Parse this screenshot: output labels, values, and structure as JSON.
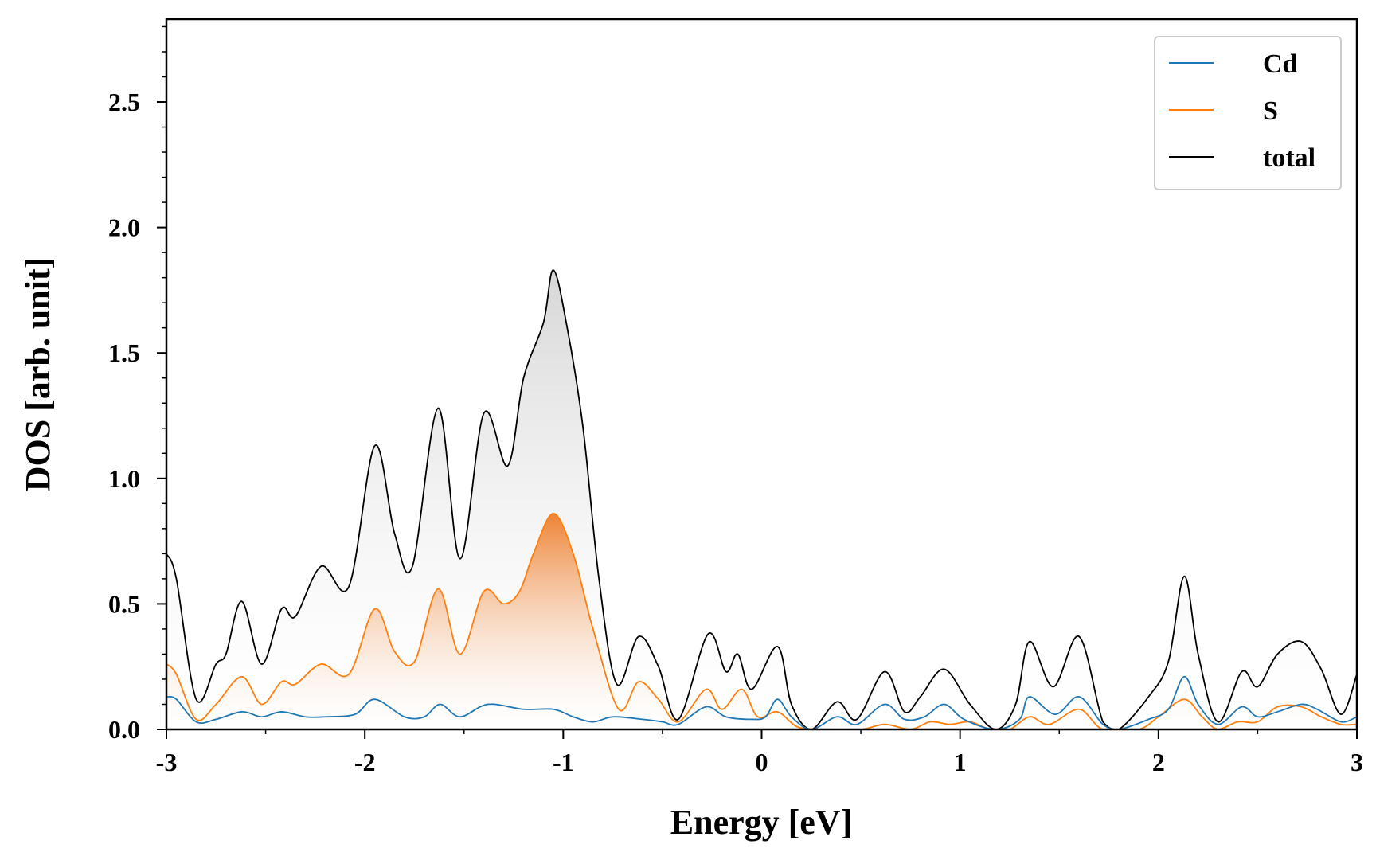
{
  "chart_data": {
    "type": "area",
    "title": "",
    "xlabel": "Energy [eV]",
    "ylabel": "DOS [arb. unit]",
    "xlim": [
      -3,
      3
    ],
    "ylim": [
      0,
      2.83
    ],
    "xticks": [
      -3,
      -2,
      -1,
      0,
      1,
      2,
      3
    ],
    "xtick_labels": [
      "-3",
      "-2",
      "-1",
      "0",
      "1",
      "2",
      "3"
    ],
    "yticks": [
      0,
      0.5,
      1,
      1.5,
      2,
      2.5
    ],
    "ytick_labels": [
      "0.0",
      "0.5",
      "1.0",
      "1.5",
      "2.0",
      "2.5"
    ],
    "legend_position": "top-right",
    "grid": false,
    "series": [
      {
        "name": "Cd",
        "color": "#1f77b4",
        "fill": false,
        "points": [
          [
            -3.0,
            0.13
          ],
          [
            -2.95,
            0.12
          ],
          [
            -2.85,
            0.03
          ],
          [
            -2.75,
            0.04
          ],
          [
            -2.62,
            0.07
          ],
          [
            -2.52,
            0.05
          ],
          [
            -2.42,
            0.07
          ],
          [
            -2.3,
            0.05
          ],
          [
            -2.2,
            0.05
          ],
          [
            -2.05,
            0.06
          ],
          [
            -1.95,
            0.12
          ],
          [
            -1.8,
            0.05
          ],
          [
            -1.7,
            0.05
          ],
          [
            -1.62,
            0.1
          ],
          [
            -1.52,
            0.05
          ],
          [
            -1.38,
            0.1
          ],
          [
            -1.2,
            0.08
          ],
          [
            -1.05,
            0.08
          ],
          [
            -0.95,
            0.05
          ],
          [
            -0.85,
            0.03
          ],
          [
            -0.75,
            0.05
          ],
          [
            -0.6,
            0.04
          ],
          [
            -0.5,
            0.03
          ],
          [
            -0.42,
            0.02
          ],
          [
            -0.28,
            0.09
          ],
          [
            -0.18,
            0.05
          ],
          [
            -0.05,
            0.04
          ],
          [
            0.02,
            0.05
          ],
          [
            0.08,
            0.12
          ],
          [
            0.15,
            0.05
          ],
          [
            0.25,
            0.0
          ],
          [
            0.38,
            0.05
          ],
          [
            0.48,
            0.02
          ],
          [
            0.62,
            0.1
          ],
          [
            0.72,
            0.04
          ],
          [
            0.82,
            0.05
          ],
          [
            0.92,
            0.1
          ],
          [
            1.02,
            0.04
          ],
          [
            1.18,
            0.0
          ],
          [
            1.3,
            0.04
          ],
          [
            1.35,
            0.13
          ],
          [
            1.48,
            0.06
          ],
          [
            1.6,
            0.13
          ],
          [
            1.72,
            0.02
          ],
          [
            1.8,
            0.0
          ],
          [
            1.95,
            0.04
          ],
          [
            2.05,
            0.08
          ],
          [
            2.13,
            0.21
          ],
          [
            2.2,
            0.1
          ],
          [
            2.3,
            0.02
          ],
          [
            2.42,
            0.09
          ],
          [
            2.5,
            0.05
          ],
          [
            2.6,
            0.07
          ],
          [
            2.72,
            0.1
          ],
          [
            2.8,
            0.08
          ],
          [
            2.92,
            0.03
          ],
          [
            3.0,
            0.05
          ]
        ]
      },
      {
        "name": "S",
        "color": "#ff7f0e",
        "fill": true,
        "points": [
          [
            -3.0,
            0.26
          ],
          [
            -2.95,
            0.22
          ],
          [
            -2.85,
            0.04
          ],
          [
            -2.75,
            0.1
          ],
          [
            -2.62,
            0.21
          ],
          [
            -2.52,
            0.1
          ],
          [
            -2.42,
            0.19
          ],
          [
            -2.35,
            0.18
          ],
          [
            -2.22,
            0.26
          ],
          [
            -2.08,
            0.22
          ],
          [
            -1.95,
            0.48
          ],
          [
            -1.85,
            0.31
          ],
          [
            -1.75,
            0.27
          ],
          [
            -1.63,
            0.56
          ],
          [
            -1.52,
            0.3
          ],
          [
            -1.4,
            0.55
          ],
          [
            -1.3,
            0.5
          ],
          [
            -1.22,
            0.55
          ],
          [
            -1.15,
            0.7
          ],
          [
            -1.05,
            0.86
          ],
          [
            -0.95,
            0.7
          ],
          [
            -0.85,
            0.4
          ],
          [
            -0.72,
            0.08
          ],
          [
            -0.62,
            0.19
          ],
          [
            -0.52,
            0.12
          ],
          [
            -0.42,
            0.03
          ],
          [
            -0.28,
            0.16
          ],
          [
            -0.2,
            0.08
          ],
          [
            -0.1,
            0.16
          ],
          [
            -0.02,
            0.05
          ],
          [
            0.08,
            0.07
          ],
          [
            0.18,
            0.01
          ],
          [
            0.3,
            0.0
          ],
          [
            0.5,
            0.0
          ],
          [
            0.62,
            0.02
          ],
          [
            0.75,
            0.0
          ],
          [
            0.85,
            0.03
          ],
          [
            0.95,
            0.02
          ],
          [
            1.05,
            0.03
          ],
          [
            1.15,
            0.0
          ],
          [
            1.25,
            0.0
          ],
          [
            1.35,
            0.05
          ],
          [
            1.45,
            0.02
          ],
          [
            1.6,
            0.08
          ],
          [
            1.72,
            0.0
          ],
          [
            1.9,
            0.0
          ],
          [
            2.0,
            0.05
          ],
          [
            2.13,
            0.12
          ],
          [
            2.22,
            0.05
          ],
          [
            2.3,
            0.0
          ],
          [
            2.4,
            0.03
          ],
          [
            2.5,
            0.03
          ],
          [
            2.6,
            0.09
          ],
          [
            2.72,
            0.09
          ],
          [
            2.82,
            0.05
          ],
          [
            2.92,
            0.02
          ],
          [
            3.0,
            0.02
          ]
        ]
      },
      {
        "name": "total",
        "color": "#000000",
        "fill": true,
        "points": [
          [
            -3.0,
            0.7
          ],
          [
            -2.95,
            0.6
          ],
          [
            -2.85,
            0.12
          ],
          [
            -2.75,
            0.26
          ],
          [
            -2.7,
            0.3
          ],
          [
            -2.62,
            0.51
          ],
          [
            -2.52,
            0.26
          ],
          [
            -2.42,
            0.48
          ],
          [
            -2.35,
            0.45
          ],
          [
            -2.22,
            0.65
          ],
          [
            -2.08,
            0.57
          ],
          [
            -1.95,
            1.13
          ],
          [
            -1.85,
            0.78
          ],
          [
            -1.76,
            0.65
          ],
          [
            -1.63,
            1.28
          ],
          [
            -1.52,
            0.68
          ],
          [
            -1.4,
            1.26
          ],
          [
            -1.28,
            1.05
          ],
          [
            -1.2,
            1.4
          ],
          [
            -1.1,
            1.62
          ],
          [
            -1.05,
            1.83
          ],
          [
            -0.98,
            1.6
          ],
          [
            -0.9,
            1.2
          ],
          [
            -0.82,
            0.6
          ],
          [
            -0.73,
            0.18
          ],
          [
            -0.62,
            0.37
          ],
          [
            -0.52,
            0.25
          ],
          [
            -0.42,
            0.04
          ],
          [
            -0.27,
            0.38
          ],
          [
            -0.18,
            0.23
          ],
          [
            -0.12,
            0.3
          ],
          [
            -0.05,
            0.16
          ],
          [
            0.08,
            0.33
          ],
          [
            0.15,
            0.1
          ],
          [
            0.25,
            0.0
          ],
          [
            0.38,
            0.11
          ],
          [
            0.48,
            0.04
          ],
          [
            0.62,
            0.23
          ],
          [
            0.72,
            0.07
          ],
          [
            0.8,
            0.13
          ],
          [
            0.92,
            0.24
          ],
          [
            1.05,
            0.1
          ],
          [
            1.18,
            0.0
          ],
          [
            1.28,
            0.1
          ],
          [
            1.35,
            0.35
          ],
          [
            1.47,
            0.17
          ],
          [
            1.6,
            0.37
          ],
          [
            1.72,
            0.03
          ],
          [
            1.8,
            0.0
          ],
          [
            1.95,
            0.13
          ],
          [
            2.05,
            0.27
          ],
          [
            2.13,
            0.61
          ],
          [
            2.2,
            0.3
          ],
          [
            2.3,
            0.03
          ],
          [
            2.42,
            0.23
          ],
          [
            2.5,
            0.17
          ],
          [
            2.6,
            0.3
          ],
          [
            2.72,
            0.35
          ],
          [
            2.82,
            0.24
          ],
          [
            2.92,
            0.06
          ],
          [
            3.0,
            0.22
          ]
        ]
      }
    ]
  }
}
